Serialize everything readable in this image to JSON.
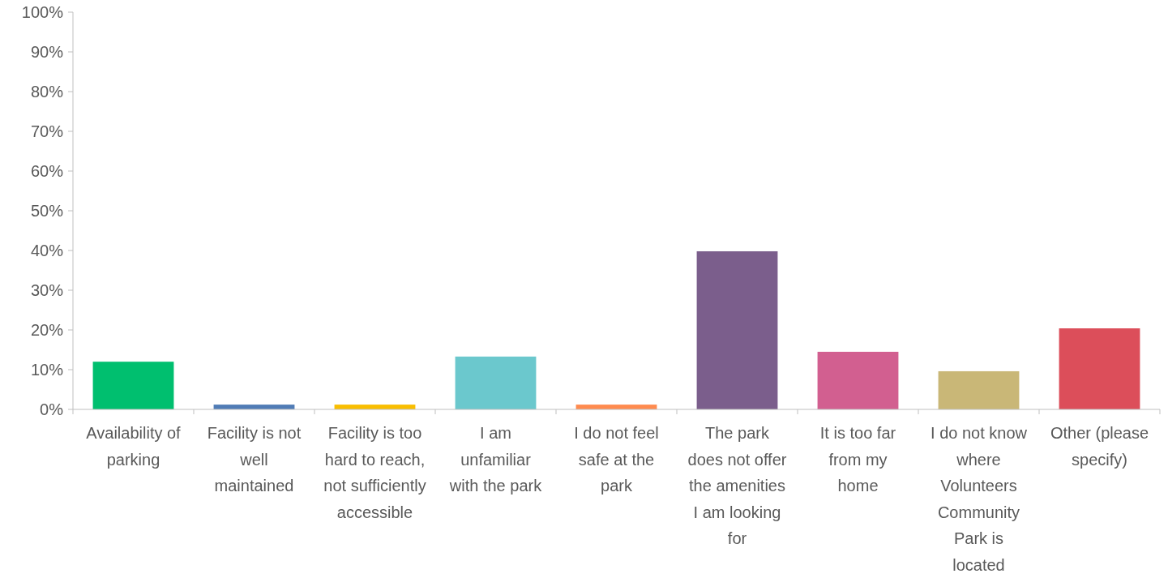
{
  "chart_data": {
    "type": "bar",
    "categories": [
      "Availability of parking",
      "Facility is not well maintained",
      "Facility is too hard to reach, not sufficiently accessible",
      "I am unfamiliar with the park",
      "I do not feel safe at the park",
      "The park does not offer the amenities I am looking for",
      "It is too far from my home",
      "I do not know where Volunteers Community Park is located",
      "Other (please specify)"
    ],
    "values": [
      12.0,
      1.2,
      1.2,
      13.3,
      1.2,
      39.8,
      14.5,
      9.6,
      20.4
    ],
    "colors": [
      "#00bf6f",
      "#507cb6",
      "#f9be00",
      "#6bc8cd",
      "#ff8b4f",
      "#7b5e8c",
      "#d25f90",
      "#c9b777",
      "#dc4e5a"
    ],
    "ylim": [
      0,
      100
    ],
    "yticks": [
      {
        "value": 0,
        "label": "0%"
      },
      {
        "value": 10,
        "label": "10%"
      },
      {
        "value": 20,
        "label": "20%"
      },
      {
        "value": 30,
        "label": "30%"
      },
      {
        "value": 40,
        "label": "40%"
      },
      {
        "value": 50,
        "label": "50%"
      },
      {
        "value": 60,
        "label": "60%"
      },
      {
        "value": 70,
        "label": "70%"
      },
      {
        "value": 80,
        "label": "80%"
      },
      {
        "value": 90,
        "label": "90%"
      },
      {
        "value": 100,
        "label": "100%"
      }
    ],
    "grid": false
  }
}
